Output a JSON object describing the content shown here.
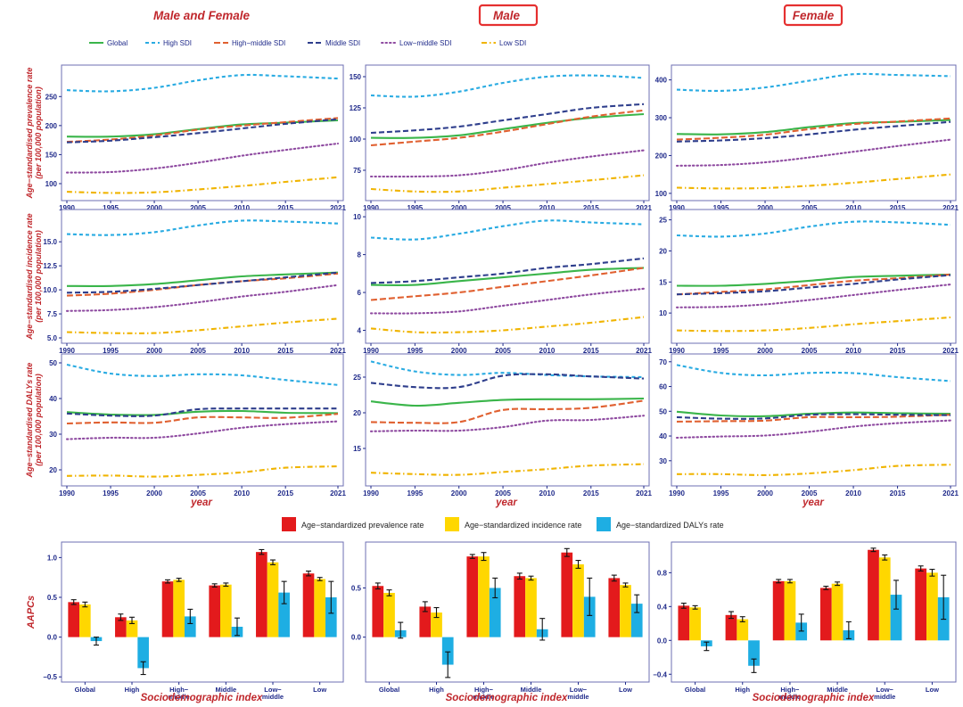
{
  "columns": [
    "Male and Female",
    "Male",
    "Female"
  ],
  "legend": {
    "items": [
      {
        "label": "Global",
        "color": "#3ab54a",
        "dash": "solid"
      },
      {
        "label": "High SDI",
        "color": "#29abe2",
        "dash": "dash"
      },
      {
        "label": "High−middle SDI",
        "color": "#e06030",
        "dash": "longdash"
      },
      {
        "label": "Middle SDI",
        "color": "#2e3e8c",
        "dash": "dash2"
      },
      {
        "label": "Low−middle SDI",
        "color": "#8e4aa0",
        "dash": "dot"
      },
      {
        "label": "Low SDI",
        "color": "#f0b400",
        "dash": "dotdash"
      }
    ]
  },
  "bar_legend": {
    "items": [
      {
        "label": "Age−standardized prevalence rate",
        "color": "#e31a1c"
      },
      {
        "label": "Age−standardized incidence rate",
        "color": "#ffd700"
      },
      {
        "label": "Age−standardized DALYs rate",
        "color": "#1eaee3"
      }
    ]
  },
  "chart_data": [
    {
      "type": "line",
      "metric": "prevalence",
      "ylabel_lines": [
        "Age−standardised prevalence rate",
        "(per 100,000 population)"
      ],
      "x": [
        1990,
        1995,
        2000,
        2005,
        2010,
        2015,
        2021
      ],
      "x_ticks": [
        "1990",
        "1995",
        "2000",
        "2005",
        "2010",
        "2015",
        "2021"
      ],
      "panels": [
        {
          "column": "Male and Female",
          "ylim": [
            80,
            295
          ],
          "y_ticks": [
            100,
            150,
            200,
            250
          ],
          "series": {
            "Global": [
              181,
              181,
              185,
              194,
              202,
              205,
              209
            ],
            "High SDI": [
              261,
              259,
              265,
              278,
              287,
              285,
              281
            ],
            "High−middle SDI": [
              172,
              176,
              183,
              193,
              200,
              206,
              213
            ],
            "Middle SDI": [
              171,
              174,
              180,
              187,
              195,
              203,
              211
            ],
            "Low−middle SDI": [
              119,
              120,
              126,
              136,
              148,
              158,
              169
            ],
            "Low SDI": [
              86,
              84,
              85,
              90,
              96,
              103,
              111
            ]
          }
        },
        {
          "column": "Male",
          "ylim": [
            55,
            155
          ],
          "y_ticks": [
            75,
            100,
            125,
            150
          ],
          "series": {
            "Global": [
              101,
              101,
              103,
              108,
              113,
              117,
              120
            ],
            "High SDI": [
              135,
              134,
              138,
              145,
              150,
              151,
              149
            ],
            "High−middle SDI": [
              95,
              98,
              101,
              106,
              112,
              118,
              123
            ],
            "Middle SDI": [
              105,
              107,
              110,
              115,
              120,
              125,
              128
            ],
            "Low−middle SDI": [
              70,
              70,
              71,
              75,
              81,
              86,
              91
            ],
            "Low SDI": [
              60,
              58,
              58,
              61,
              64,
              67,
              71
            ]
          }
        },
        {
          "column": "Female",
          "ylim": [
            95,
            425
          ],
          "y_ticks": [
            100,
            200,
            300,
            400
          ],
          "series": {
            "Global": [
              257,
              256,
              262,
              275,
              286,
              289,
              294
            ],
            "High SDI": [
              374,
              371,
              380,
              398,
              415,
              413,
              410
            ],
            "High−middle SDI": [
              242,
              247,
              255,
              270,
              283,
              290,
              298
            ],
            "Middle SDI": [
              237,
              240,
              246,
              256,
              268,
              278,
              289
            ],
            "Low−middle SDI": [
              173,
              175,
              182,
              195,
              210,
              225,
              242
            ],
            "Low SDI": [
              115,
              113,
              114,
              120,
              128,
              138,
              150
            ]
          }
        }
      ]
    },
    {
      "type": "line",
      "metric": "incidence",
      "ylabel_lines": [
        "Age−standardised incidence rate",
        "(per 100,000 population)"
      ],
      "x": [
        1990,
        1995,
        2000,
        2005,
        2010,
        2015,
        2021
      ],
      "x_ticks": [
        "1990",
        "1995",
        "2000",
        "2005",
        "2010",
        "2015",
        "2021"
      ],
      "panels": [
        {
          "column": "Male and Female",
          "ylim": [
            5.0,
            17.8
          ],
          "y_ticks": [
            5.0,
            7.5,
            10.0,
            12.5,
            15.0
          ],
          "y_tick_labels": [
            "5.0",
            "7.5",
            "10.0",
            "12.5",
            "15.0"
          ],
          "series": {
            "Global": [
              10.4,
              10.4,
              10.6,
              11.0,
              11.4,
              11.6,
              11.8
            ],
            "High SDI": [
              15.8,
              15.7,
              16.0,
              16.7,
              17.2,
              17.1,
              16.9
            ],
            "High−middle SDI": [
              9.4,
              9.6,
              10.0,
              10.5,
              10.9,
              11.2,
              11.7
            ],
            "Middle SDI": [
              9.7,
              9.8,
              10.1,
              10.5,
              10.9,
              11.3,
              11.8
            ],
            "Low−middle SDI": [
              7.8,
              7.9,
              8.2,
              8.7,
              9.3,
              9.8,
              10.5
            ],
            "Low SDI": [
              5.6,
              5.5,
              5.5,
              5.8,
              6.2,
              6.6,
              7.0
            ]
          }
        },
        {
          "column": "Male",
          "ylim": [
            3.6,
            10.1
          ],
          "y_ticks": [
            4,
            6,
            8,
            10
          ],
          "y_tick_labels": [
            "4",
            "6",
            "8",
            "10"
          ],
          "series": {
            "Global": [
              6.4,
              6.4,
              6.6,
              6.8,
              7.0,
              7.2,
              7.3
            ],
            "High SDI": [
              8.9,
              8.8,
              9.1,
              9.5,
              9.8,
              9.7,
              9.6
            ],
            "High−middle SDI": [
              5.6,
              5.8,
              6.0,
              6.3,
              6.6,
              6.9,
              7.3
            ],
            "Middle SDI": [
              6.5,
              6.6,
              6.8,
              7.0,
              7.3,
              7.5,
              7.8
            ],
            "Low−middle SDI": [
              4.9,
              4.9,
              5.0,
              5.3,
              5.6,
              5.9,
              6.2
            ],
            "Low SDI": [
              4.1,
              3.9,
              3.9,
              4.0,
              4.2,
              4.4,
              4.7
            ]
          }
        },
        {
          "column": "Female",
          "ylim": [
            6.0,
            25.8
          ],
          "y_ticks": [
            10,
            15,
            20,
            25
          ],
          "y_tick_labels": [
            "10",
            "15",
            "20",
            "25"
          ],
          "series": {
            "Global": [
              14.4,
              14.4,
              14.7,
              15.2,
              15.8,
              16.0,
              16.2
            ],
            "High SDI": [
              22.5,
              22.3,
              22.8,
              23.9,
              24.7,
              24.6,
              24.2
            ],
            "High−middle SDI": [
              13.0,
              13.4,
              13.8,
              14.5,
              15.2,
              15.6,
              16.2
            ],
            "Middle SDI": [
              13.0,
              13.2,
              13.5,
              14.1,
              14.7,
              15.4,
              16.1
            ],
            "Low−middle SDI": [
              10.9,
              11.0,
              11.4,
              12.1,
              12.9,
              13.7,
              14.6
            ],
            "Low SDI": [
              7.2,
              7.1,
              7.2,
              7.6,
              8.2,
              8.7,
              9.3
            ]
          }
        }
      ]
    },
    {
      "type": "line",
      "metric": "DALYs",
      "ylabel_lines": [
        "Age−standardised DALYs rate",
        "(per 100,000 population)"
      ],
      "x": [
        1990,
        1995,
        2000,
        2005,
        2010,
        2015,
        2021
      ],
      "x_ticks": [
        "1990",
        "1995",
        "2000",
        "2005",
        "2010",
        "2015",
        "2021"
      ],
      "panels": [
        {
          "column": "Male and Female",
          "ylim": [
            17,
            51
          ],
          "y_ticks": [
            20,
            30,
            40,
            50
          ],
          "series": {
            "Global": [
              36.2,
              35.5,
              35.4,
              36.3,
              36.5,
              36.0,
              35.9
            ],
            "High SDI": [
              49.5,
              47.0,
              46.3,
              46.8,
              46.5,
              45.2,
              43.8
            ],
            "High−middle SDI": [
              33.0,
              33.3,
              33.2,
              34.7,
              34.7,
              34.6,
              35.7
            ],
            "Middle SDI": [
              35.8,
              35.2,
              35.2,
              37.0,
              37.2,
              37.2,
              37.2
            ],
            "Low−middle SDI": [
              28.6,
              29.0,
              29.0,
              30.2,
              31.8,
              32.8,
              33.6
            ],
            "Low SDI": [
              18.3,
              18.4,
              18.1,
              18.6,
              19.3,
              20.6,
              21.0
            ]
          }
        },
        {
          "column": "Male",
          "ylim": [
            10.5,
            27.5
          ],
          "y_ticks": [
            15,
            20,
            25
          ],
          "series": {
            "Global": [
              21.6,
              21.0,
              21.4,
              21.8,
              21.9,
              21.9,
              22.0
            ],
            "High SDI": [
              27.2,
              25.8,
              25.3,
              25.6,
              25.3,
              25.1,
              25.0
            ],
            "High−middle SDI": [
              18.7,
              18.6,
              18.7,
              20.4,
              20.5,
              20.7,
              21.7
            ],
            "Middle SDI": [
              24.2,
              23.6,
              23.6,
              25.2,
              25.4,
              25.1,
              24.8
            ],
            "Low−middle SDI": [
              17.4,
              17.5,
              17.5,
              18.0,
              18.9,
              19.0,
              19.6
            ],
            "Low SDI": [
              11.6,
              11.4,
              11.3,
              11.7,
              12.1,
              12.6,
              12.8
            ]
          }
        },
        {
          "column": "Female",
          "ylim": [
            22,
            71
          ],
          "y_ticks": [
            30,
            40,
            50,
            60,
            70
          ],
          "series": {
            "Global": [
              49.8,
              48.3,
              48.0,
              49.0,
              49.5,
              49.2,
              49.0
            ],
            "High SDI": [
              68.7,
              65.5,
              64.5,
              65.5,
              65.4,
              63.8,
              62.2
            ],
            "High−middle SDI": [
              45.8,
              46.0,
              46.2,
              47.6,
              47.6,
              47.8,
              48.6
            ],
            "Middle SDI": [
              47.6,
              47.0,
              47.1,
              48.6,
              48.8,
              48.6,
              48.4
            ],
            "Low−middle SDI": [
              39.3,
              39.8,
              40.2,
              41.7,
              43.8,
              45.2,
              46.3
            ],
            "Low SDI": [
              24.6,
              24.6,
              24.2,
              24.9,
              26.2,
              27.9,
              28.4
            ]
          }
        }
      ]
    },
    {
      "type": "bar",
      "metric": "AAPCs",
      "ylabel": "AAPCs",
      "xlabel": "Sociodemographic index",
      "categories": [
        "Global",
        "High",
        "High−middle",
        "Middle",
        "Low−middle",
        "Low"
      ],
      "category_lines": [
        [
          "Global"
        ],
        [
          "High"
        ],
        [
          "High−",
          "middle"
        ],
        [
          "Middle"
        ],
        [
          "Low−",
          "middle"
        ],
        [
          "Low"
        ]
      ],
      "series_names": [
        "Age−standardized prevalence rate",
        "Age−standardized incidence rate",
        "Age−standardized DALYs rate"
      ],
      "panels": [
        {
          "column": "Male and Female",
          "ylim": [
            -0.52,
            1.15
          ],
          "y_ticks": [
            -0.5,
            0.0,
            0.5,
            1.0
          ],
          "y_tick_labels": [
            "−0.5",
            "0.0",
            "0.5",
            "1.0"
          ],
          "values": [
            [
              0.44,
              0.41,
              -0.05
            ],
            [
              0.25,
              0.21,
              -0.39
            ],
            [
              0.7,
              0.72,
              0.26
            ],
            [
              0.65,
              0.66,
              0.13
            ],
            [
              1.07,
              0.94,
              0.56
            ],
            [
              0.8,
              0.73,
              0.5
            ]
          ],
          "errors": [
            [
              0.03,
              0.03,
              0.05
            ],
            [
              0.04,
              0.04,
              0.08
            ],
            [
              0.02,
              0.02,
              0.09
            ],
            [
              0.02,
              0.02,
              0.11
            ],
            [
              0.03,
              0.03,
              0.14
            ],
            [
              0.03,
              0.02,
              0.2
            ]
          ]
        },
        {
          "column": "Male",
          "ylim": [
            -0.42,
            0.93
          ],
          "y_ticks": [
            0.0,
            0.5
          ],
          "y_tick_labels": [
            "0.0",
            "0.5"
          ],
          "values": [
            [
              0.52,
              0.45,
              0.07
            ],
            [
              0.31,
              0.25,
              -0.28
            ],
            [
              0.82,
              0.82,
              0.5
            ],
            [
              0.62,
              0.6,
              0.08
            ],
            [
              0.86,
              0.74,
              0.41
            ],
            [
              0.6,
              0.53,
              0.34
            ]
          ],
          "errors": [
            [
              0.03,
              0.03,
              0.08
            ],
            [
              0.05,
              0.05,
              0.13
            ],
            [
              0.02,
              0.04,
              0.1
            ],
            [
              0.03,
              0.02,
              0.11
            ],
            [
              0.04,
              0.04,
              0.19
            ],
            [
              0.03,
              0.02,
              0.09
            ]
          ]
        },
        {
          "column": "Female",
          "ylim": [
            -0.45,
            1.12
          ],
          "y_ticks": [
            -0.4,
            0.0,
            0.4,
            0.8
          ],
          "y_tick_labels": [
            "−0.4",
            "0.0",
            "0.4",
            "0.8"
          ],
          "values": [
            [
              0.41,
              0.39,
              -0.07
            ],
            [
              0.3,
              0.25,
              -0.3
            ],
            [
              0.7,
              0.7,
              0.21
            ],
            [
              0.62,
              0.67,
              0.12
            ],
            [
              1.07,
              0.98,
              0.54
            ],
            [
              0.85,
              0.8,
              0.51
            ]
          ],
          "errors": [
            [
              0.03,
              0.02,
              0.05
            ],
            [
              0.04,
              0.03,
              0.08
            ],
            [
              0.02,
              0.02,
              0.1
            ],
            [
              0.02,
              0.02,
              0.1
            ],
            [
              0.02,
              0.03,
              0.17
            ],
            [
              0.03,
              0.04,
              0.26
            ]
          ]
        }
      ]
    }
  ],
  "axis_labels": {
    "year": "year",
    "sdi": "Sociodemographic index"
  }
}
